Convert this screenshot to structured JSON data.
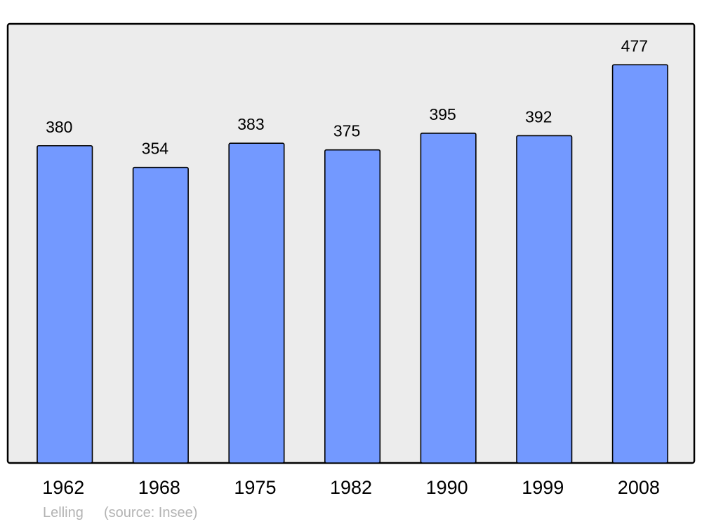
{
  "chart_data": {
    "type": "bar",
    "categories": [
      "1962",
      "1968",
      "1975",
      "1982",
      "1990",
      "1999",
      "2008"
    ],
    "values": [
      380,
      354,
      383,
      375,
      395,
      392,
      477
    ],
    "data_labels": [
      "380",
      "354",
      "383",
      "375",
      "395",
      "392",
      "477"
    ],
    "title": "",
    "xlabel": "",
    "ylabel": "",
    "ylim": [
      0,
      526
    ],
    "grid": false,
    "legend": "none",
    "colors": {
      "bar": "#7399ff",
      "plot_background": "#ececec",
      "border": "#000000"
    }
  },
  "footer": {
    "place": "Lelling",
    "source": "(source: Insee)"
  }
}
